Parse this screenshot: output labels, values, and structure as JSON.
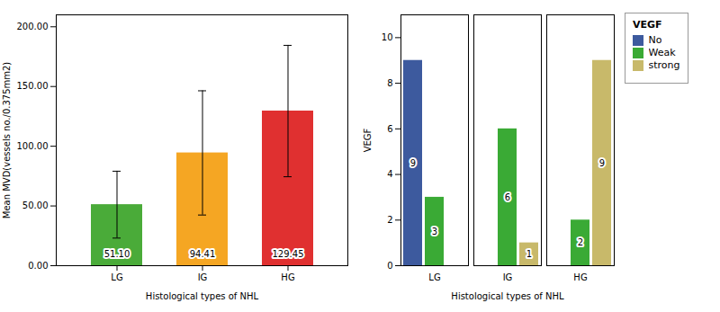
{
  "chart_data": [
    {
      "type": "bar",
      "categories": [
        "LG",
        "IG",
        "HG"
      ],
      "values": [
        51.1,
        94.41,
        129.45
      ],
      "value_labels": [
        "51.10",
        "94.41",
        "129.45"
      ],
      "data_labels": true,
      "colors": [
        "#4aab39",
        "#f5a623",
        "#e03030"
      ],
      "errors": [
        28.0,
        52.0,
        55.0
      ],
      "ylabel": "Mean MVD(vessels no./0.375mm2)",
      "xlabel": "Histological types of NHL",
      "ylim": [
        0,
        210
      ],
      "yticks": [
        {
          "value": 0,
          "label": "0.00"
        },
        {
          "value": 50,
          "label": "50.00"
        },
        {
          "value": 100,
          "label": "100.00"
        },
        {
          "value": 150,
          "label": "150.00"
        },
        {
          "value": 200,
          "label": "200.00"
        }
      ],
      "grid": false
    },
    {
      "type": "bar",
      "categories": [
        "LG",
        "IG",
        "HG"
      ],
      "series": [
        {
          "name": "No",
          "color": "#3d5a9e",
          "values": [
            9,
            0,
            0
          ]
        },
        {
          "name": "Weak",
          "color": "#3aaa35",
          "values": [
            3,
            6,
            2
          ]
        },
        {
          "name": "strong",
          "color": "#c8b96a",
          "values": [
            0,
            1,
            9
          ]
        }
      ],
      "data_labels": true,
      "ylabel": "VEGF",
      "xlabel": "Histological types of NHL",
      "ylim": [
        0,
        11
      ],
      "yticks": [
        0,
        2,
        4,
        6,
        8,
        10
      ],
      "legend": "upper right",
      "legend_title": "VEGF",
      "grid": false
    }
  ]
}
